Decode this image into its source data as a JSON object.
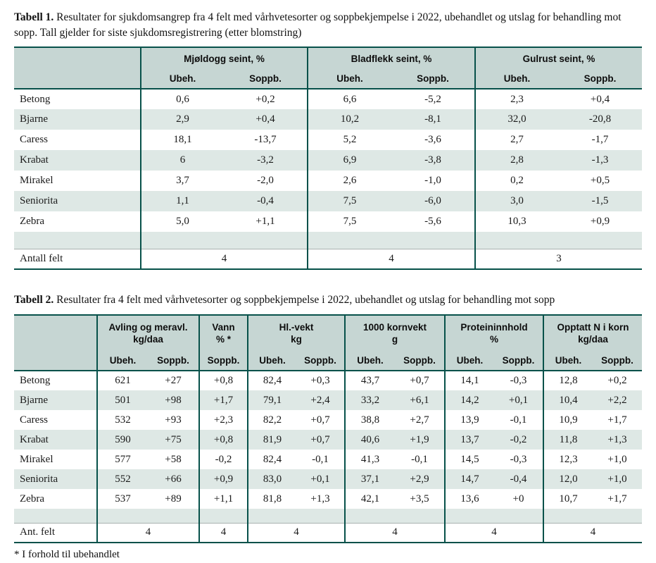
{
  "colors": {
    "dark_border": "#07514a",
    "header_bg": "#c6d6d3",
    "alt_row_bg": "#dee8e5",
    "text": "#1a1a1a"
  },
  "footnote": "* I forhold til ubehandlet",
  "table1": {
    "title_prefix": "Tabell 1.",
    "title_rest": " Resultater for sjukdomsangrep fra 4 felt med vårhvetesorter og soppbekjempelse i 2022, ubehandlet og utslag for behandling mot sopp. Tall gjelder for siste sjukdomsregistrering (etter blomstring)",
    "groups": [
      {
        "label": "Mjøldogg seint, %",
        "unit": "",
        "sub": [
          "Ubeh.",
          "Soppb."
        ]
      },
      {
        "label": "Bladflekk seint, %",
        "unit": "",
        "sub": [
          "Ubeh.",
          "Soppb."
        ]
      },
      {
        "label": "Gulrust seint, %",
        "unit": "",
        "sub": [
          "Ubeh.",
          "Soppb."
        ]
      }
    ],
    "rows": [
      {
        "name": "Betong",
        "values": [
          "0,6",
          "+0,2",
          "6,6",
          "-5,2",
          "2,3",
          "+0,4"
        ]
      },
      {
        "name": "Bjarne",
        "values": [
          "2,9",
          "+0,4",
          "10,2",
          "-8,1",
          "32,0",
          "-20,8"
        ]
      },
      {
        "name": "Caress",
        "values": [
          "18,1",
          "-13,7",
          "5,2",
          "-3,6",
          "2,7",
          "-1,7"
        ]
      },
      {
        "name": "Krabat",
        "values": [
          "6",
          "-3,2",
          "6,9",
          "-3,8",
          "2,8",
          "-1,3"
        ]
      },
      {
        "name": "Mirakel",
        "values": [
          "3,7",
          "-2,0",
          "2,6",
          "-1,0",
          "0,2",
          "+0,5"
        ]
      },
      {
        "name": "Seniorita",
        "values": [
          "1,1",
          "-0,4",
          "7,5",
          "-6,0",
          "3,0",
          "-1,5"
        ]
      },
      {
        "name": "Zebra",
        "values": [
          "5,0",
          "+1,1",
          "7,5",
          "-5,6",
          "10,3",
          "+0,9"
        ]
      }
    ],
    "footer": {
      "label": "Antall felt",
      "values": [
        "4",
        "4",
        "3"
      ]
    }
  },
  "table2": {
    "title_prefix": "Tabell 2.",
    "title_rest": " Resultater fra 4 felt med vårhvetesorter og soppbekjempelse i 2022, ubehandlet og utslag for behandling mot sopp",
    "groups": [
      {
        "label": "Avling og meravl.",
        "unit": "kg/daa",
        "sub": [
          "Ubeh.",
          "Soppb."
        ]
      },
      {
        "label": "Vann",
        "unit": "% *",
        "sub": [
          "Soppb."
        ]
      },
      {
        "label": "Hl.-vekt",
        "unit": "kg",
        "sub": [
          "Ubeh.",
          "Soppb."
        ]
      },
      {
        "label": "1000 kornvekt",
        "unit": "g",
        "sub": [
          "Ubeh.",
          "Soppb."
        ]
      },
      {
        "label": "Proteininnhold",
        "unit": "%",
        "sub": [
          "Ubeh.",
          "Soppb."
        ]
      },
      {
        "label": "Opptatt N i korn",
        "unit": "kg/daa",
        "sub": [
          "Ubeh.",
          "Soppb."
        ]
      }
    ],
    "rows": [
      {
        "name": "Betong",
        "values": [
          "621",
          "+27",
          "+0,8",
          "82,4",
          "+0,3",
          "43,7",
          "+0,7",
          "14,1",
          "-0,3",
          "12,8",
          "+0,2"
        ]
      },
      {
        "name": "Bjarne",
        "values": [
          "501",
          "+98",
          "+1,7",
          "79,1",
          "+2,4",
          "33,2",
          "+6,1",
          "14,2",
          "+0,1",
          "10,4",
          "+2,2"
        ]
      },
      {
        "name": "Caress",
        "values": [
          "532",
          "+93",
          "+2,3",
          "82,2",
          "+0,7",
          "38,8",
          "+2,7",
          "13,9",
          "-0,1",
          "10,9",
          "+1,7"
        ]
      },
      {
        "name": "Krabat",
        "values": [
          "590",
          "+75",
          "+0,8",
          "81,9",
          "+0,7",
          "40,6",
          "+1,9",
          "13,7",
          "-0,2",
          "11,8",
          "+1,3"
        ]
      },
      {
        "name": "Mirakel",
        "values": [
          "577",
          "+58",
          "-0,2",
          "82,4",
          "-0,1",
          "41,3",
          "-0,1",
          "14,5",
          "-0,3",
          "12,3",
          "+1,0"
        ]
      },
      {
        "name": "Seniorita",
        "values": [
          "552",
          "+66",
          "+0,9",
          "83,0",
          "+0,1",
          "37,1",
          "+2,9",
          "14,7",
          "-0,4",
          "12,0",
          "+1,0"
        ]
      },
      {
        "name": "Zebra",
        "values": [
          "537",
          "+89",
          "+1,1",
          "81,8",
          "+1,3",
          "42,1",
          "+3,5",
          "13,6",
          "+0",
          "10,7",
          "+1,7"
        ]
      }
    ],
    "footer": {
      "label": "Ant. felt",
      "values": [
        "4",
        "4",
        "4",
        "4",
        "4",
        "4"
      ]
    }
  }
}
